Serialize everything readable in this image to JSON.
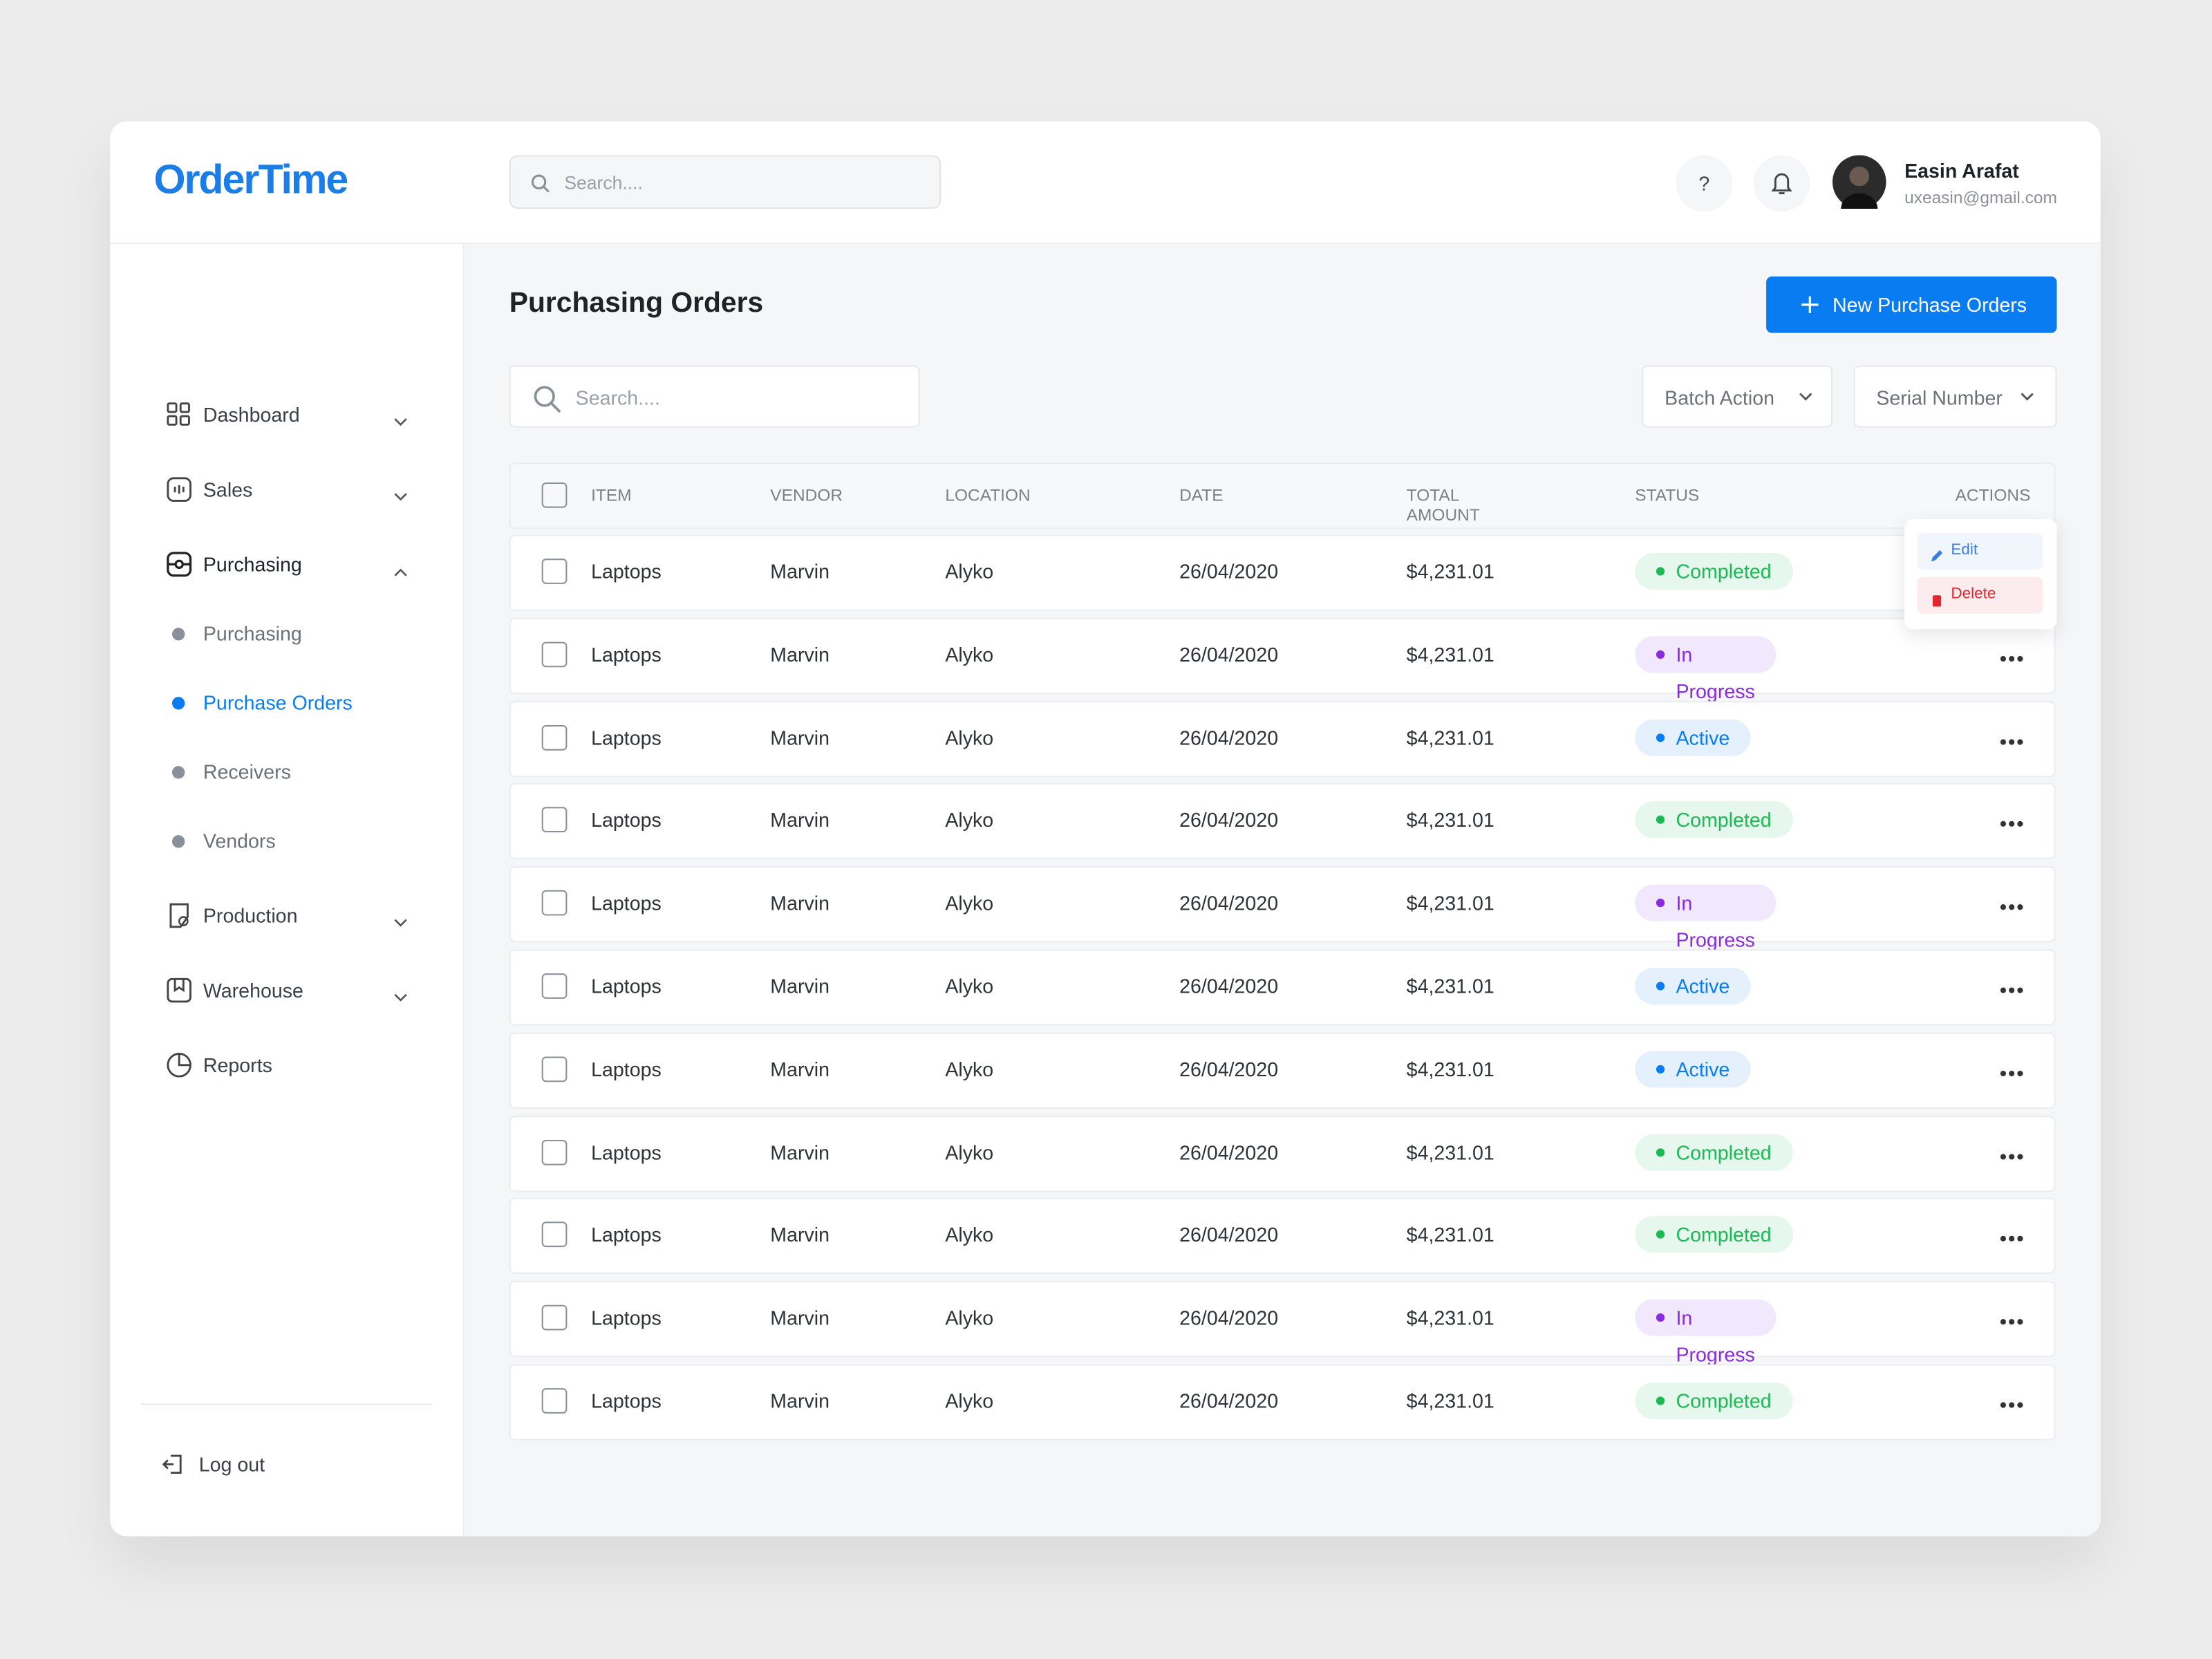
{
  "header": {
    "logo": "OrderTime",
    "search_placeholder": "Search....",
    "user": {
      "name": "Easin Arafat",
      "email": "uxeasin@gmail.com"
    }
  },
  "sidebar": {
    "items": [
      {
        "label": "Dashboard"
      },
      {
        "label": "Sales"
      },
      {
        "label": "Purchasing",
        "children": [
          "Purchasing",
          "Purchase Orders",
          "Receivers",
          "Vendors"
        ]
      },
      {
        "label": "Production"
      },
      {
        "label": "Warehouse"
      },
      {
        "label": "Reports"
      }
    ],
    "logout": "Log out"
  },
  "page": {
    "title": "Purchasing Orders",
    "new_button": "New Purchase Orders",
    "search_placeholder": "Search....",
    "batch_action": "Batch Action",
    "serial_number": "Serial Number"
  },
  "table": {
    "columns": [
      "ITEM",
      "VENDOR",
      "LOCATION",
      "DATE",
      "TOTAL AMOUNT",
      "STATUS",
      "ACTIONS"
    ],
    "rows": [
      [
        "Laptops",
        "Marvin",
        "Alyko",
        "26/04/2020",
        "$4,231.01",
        "Completed"
      ],
      [
        "Laptops",
        "Marvin",
        "Alyko",
        "26/04/2020",
        "$4,231.01",
        "In Progress"
      ],
      [
        "Laptops",
        "Marvin",
        "Alyko",
        "26/04/2020",
        "$4,231.01",
        "Active"
      ],
      [
        "Laptops",
        "Marvin",
        "Alyko",
        "26/04/2020",
        "$4,231.01",
        "Completed"
      ],
      [
        "Laptops",
        "Marvin",
        "Alyko",
        "26/04/2020",
        "$4,231.01",
        "In Progress"
      ],
      [
        "Laptops",
        "Marvin",
        "Alyko",
        "26/04/2020",
        "$4,231.01",
        "Active"
      ],
      [
        "Laptops",
        "Marvin",
        "Alyko",
        "26/04/2020",
        "$4,231.01",
        "Active"
      ],
      [
        "Laptops",
        "Marvin",
        "Alyko",
        "26/04/2020",
        "$4,231.01",
        "Completed"
      ],
      [
        "Laptops",
        "Marvin",
        "Alyko",
        "26/04/2020",
        "$4,231.01",
        "Completed"
      ],
      [
        "Laptops",
        "Marvin",
        "Alyko",
        "26/04/2020",
        "$4,231.01",
        "In Progress"
      ],
      [
        "Laptops",
        "Marvin",
        "Alyko",
        "26/04/2020",
        "$4,231.01",
        "Completed"
      ]
    ],
    "menu": [
      "Edit",
      "Delete"
    ]
  }
}
